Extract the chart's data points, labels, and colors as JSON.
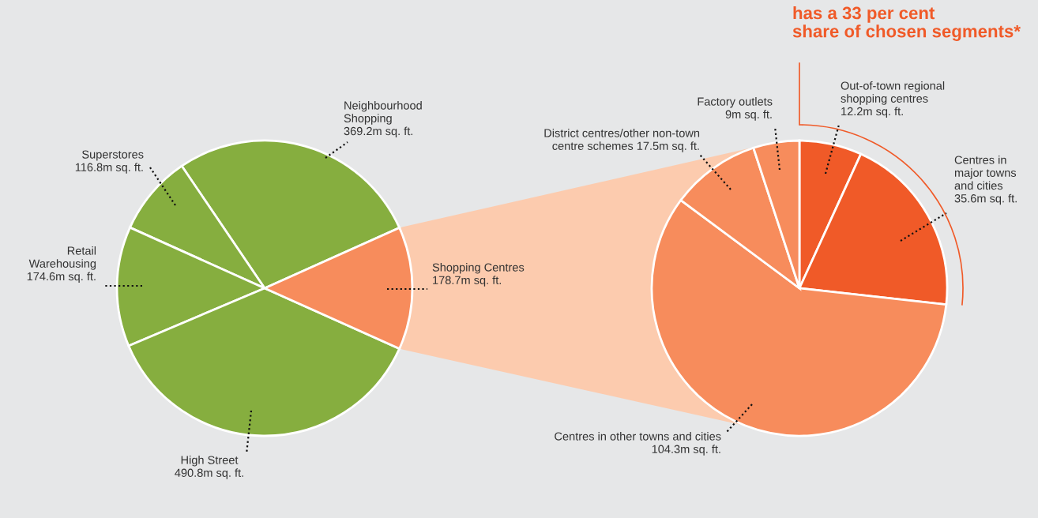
{
  "chart_data": [
    {
      "type": "pie",
      "categories": [
        "Neighbourhood\nShopping",
        "Superstores",
        "Retail\nWarehousing",
        "High Street",
        "Shopping Centres"
      ],
      "values": [
        369.2,
        116.8,
        174.6,
        490.8,
        178.7
      ],
      "value_labels": [
        "369.2m sq. ft.",
        "116.8m sq. ft.",
        "174.6m sq. ft.",
        "490.8m sq. ft.",
        "178.7m sq. ft."
      ],
      "colors": [
        "#86ae3f",
        "#86ae3f",
        "#86ae3f",
        "#86ae3f",
        "#f78c5c"
      ]
    },
    {
      "type": "pie",
      "title": "has a 33 per cent\nshare of chosen segments*",
      "categories": [
        "Out-of-town regional\nshopping centres",
        "Centres in\nmajor towns\nand cities",
        "Centres in other towns and cities",
        "District centres/other non-town\ncentre schemes",
        "Factory outlets"
      ],
      "values": [
        12.2,
        35.6,
        104.3,
        17.5,
        9
      ],
      "value_labels": [
        "12.2m sq. ft.",
        "35.6m sq. ft.",
        "104.3m sq. ft.",
        "17.5m sq. ft.",
        "9m sq. ft."
      ],
      "colors": [
        "#f05a28",
        "#f05a28",
        "#f78c5c",
        "#f78c5c",
        "#f78c5c"
      ]
    }
  ]
}
